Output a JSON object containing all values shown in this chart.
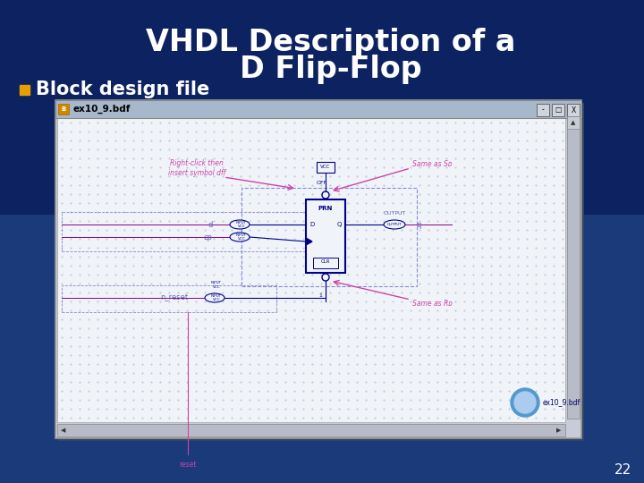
{
  "title_line1": "VHDL Description of a",
  "title_line2": "D Flip-Flop",
  "bullet_text": "Block design file",
  "page_number": "22",
  "bg_color": "#1a3a7a",
  "bg_color_top": "#0a1a50",
  "title_color": "#ffffff",
  "bullet_color": "#ffffff",
  "bullet_square_color": "#e8a000",
  "page_num_color": "#ffffff",
  "window_title": "ex10_9.bdf",
  "annotation_color": "#cc44aa",
  "line_color": "#7777cc",
  "chip_color": "#000099",
  "wire_color": "#660066"
}
